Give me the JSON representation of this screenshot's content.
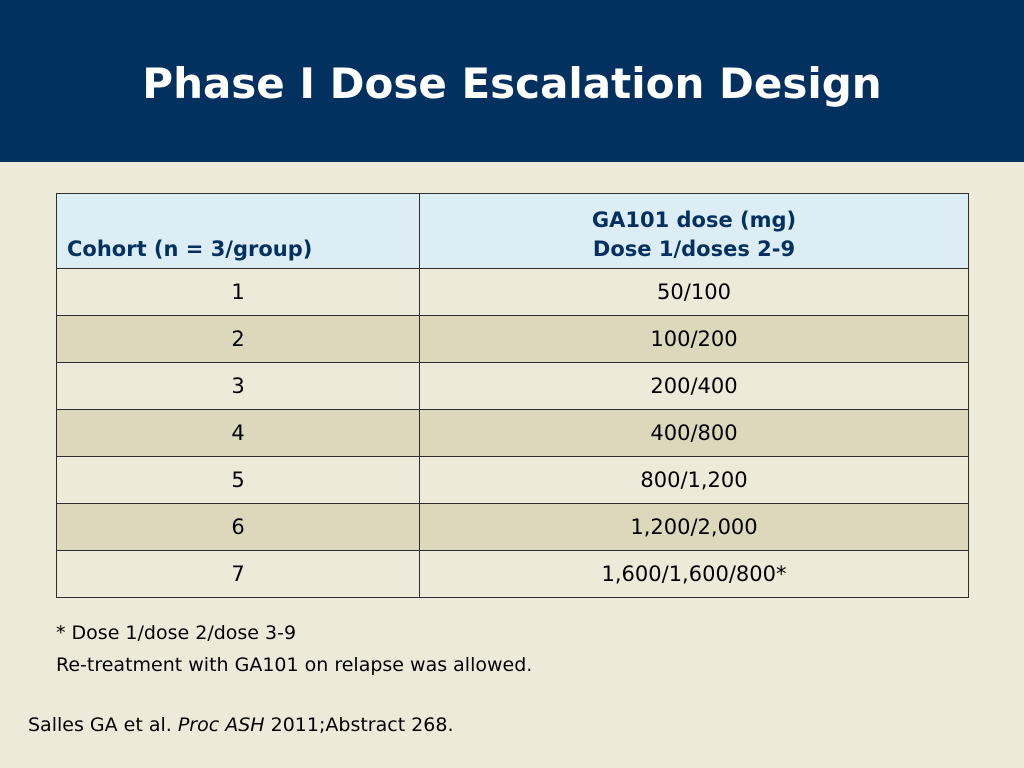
{
  "slide": {
    "title": "Phase I Dose Escalation Design",
    "colors": {
      "header_bg": "#02305F",
      "slide_bg": "#EEEAD9",
      "table_header_bg": "#DCEDF6",
      "row_alt_bg": "#DDD7BC",
      "header_text": "#02305F"
    }
  },
  "table": {
    "header": {
      "cohort": "Cohort (n = 3/group)",
      "dose_line1": "GA101 dose (mg)",
      "dose_line2": "Dose 1/doses 2-9"
    },
    "rows": [
      {
        "cohort": "1",
        "dose": "50/100"
      },
      {
        "cohort": "2",
        "dose": "100/200"
      },
      {
        "cohort": "3",
        "dose": "200/400"
      },
      {
        "cohort": "4",
        "dose": "400/800"
      },
      {
        "cohort": "5",
        "dose": "800/1,200"
      },
      {
        "cohort": "6",
        "dose": "1,200/2,000"
      },
      {
        "cohort": "7",
        "dose": "1,600/1,600/800*"
      }
    ]
  },
  "footnotes": {
    "line1": "* Dose 1/dose 2/dose 3-9",
    "line2": "Re-treatment with GA101 on relapse was allowed."
  },
  "citation": {
    "authors": "Salles GA et al.",
    "journal": "Proc ASH",
    "detail": "2011;Abstract 268."
  }
}
